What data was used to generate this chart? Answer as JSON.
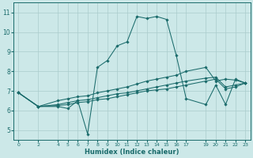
{
  "xlabel": "Humidex (Indice chaleur)",
  "bg_color": "#cce8e8",
  "grid_color": "#aacccc",
  "line_color": "#1a6b6b",
  "xlim": [
    -0.5,
    23.5
  ],
  "ylim": [
    4.5,
    11.5
  ],
  "yticks": [
    5,
    6,
    7,
    8,
    9,
    10,
    11
  ],
  "xticks": [
    0,
    2,
    4,
    5,
    6,
    7,
    8,
    9,
    10,
    11,
    12,
    13,
    14,
    15,
    16,
    17,
    19,
    20,
    21,
    22,
    23
  ],
  "series": [
    {
      "x": [
        0,
        2,
        4,
        5,
        6,
        7,
        8,
        9,
        10,
        11,
        12,
        13,
        14,
        15,
        16,
        17,
        19,
        20,
        21,
        22,
        23
      ],
      "y": [
        6.9,
        6.2,
        6.2,
        6.1,
        6.5,
        4.8,
        8.2,
        8.55,
        9.3,
        9.5,
        10.8,
        10.7,
        10.8,
        10.65,
        8.8,
        6.6,
        6.3,
        7.3,
        6.3,
        7.6,
        7.4
      ]
    },
    {
      "x": [
        0,
        2,
        4,
        5,
        6,
        7,
        8,
        9,
        10,
        11,
        12,
        13,
        14,
        15,
        16,
        17,
        19,
        20,
        21,
        22,
        23
      ],
      "y": [
        6.9,
        6.2,
        6.5,
        6.6,
        6.7,
        6.75,
        6.9,
        7.0,
        7.1,
        7.2,
        7.35,
        7.5,
        7.6,
        7.7,
        7.8,
        8.0,
        8.2,
        7.5,
        7.6,
        7.55,
        7.4
      ]
    },
    {
      "x": [
        0,
        2,
        4,
        5,
        6,
        7,
        8,
        9,
        10,
        11,
        12,
        13,
        14,
        15,
        16,
        17,
        19,
        20,
        21,
        22,
        23
      ],
      "y": [
        6.9,
        6.2,
        6.3,
        6.4,
        6.5,
        6.55,
        6.65,
        6.75,
        6.85,
        6.9,
        7.0,
        7.1,
        7.2,
        7.3,
        7.4,
        7.5,
        7.65,
        7.7,
        7.2,
        7.3,
        7.4
      ]
    },
    {
      "x": [
        0,
        2,
        4,
        5,
        6,
        7,
        8,
        9,
        10,
        11,
        12,
        13,
        14,
        15,
        16,
        17,
        19,
        20,
        21,
        22,
        23
      ],
      "y": [
        6.9,
        6.2,
        6.25,
        6.3,
        6.4,
        6.45,
        6.55,
        6.6,
        6.7,
        6.8,
        6.9,
        7.0,
        7.05,
        7.1,
        7.2,
        7.3,
        7.5,
        7.6,
        7.1,
        7.2,
        7.4
      ]
    }
  ]
}
